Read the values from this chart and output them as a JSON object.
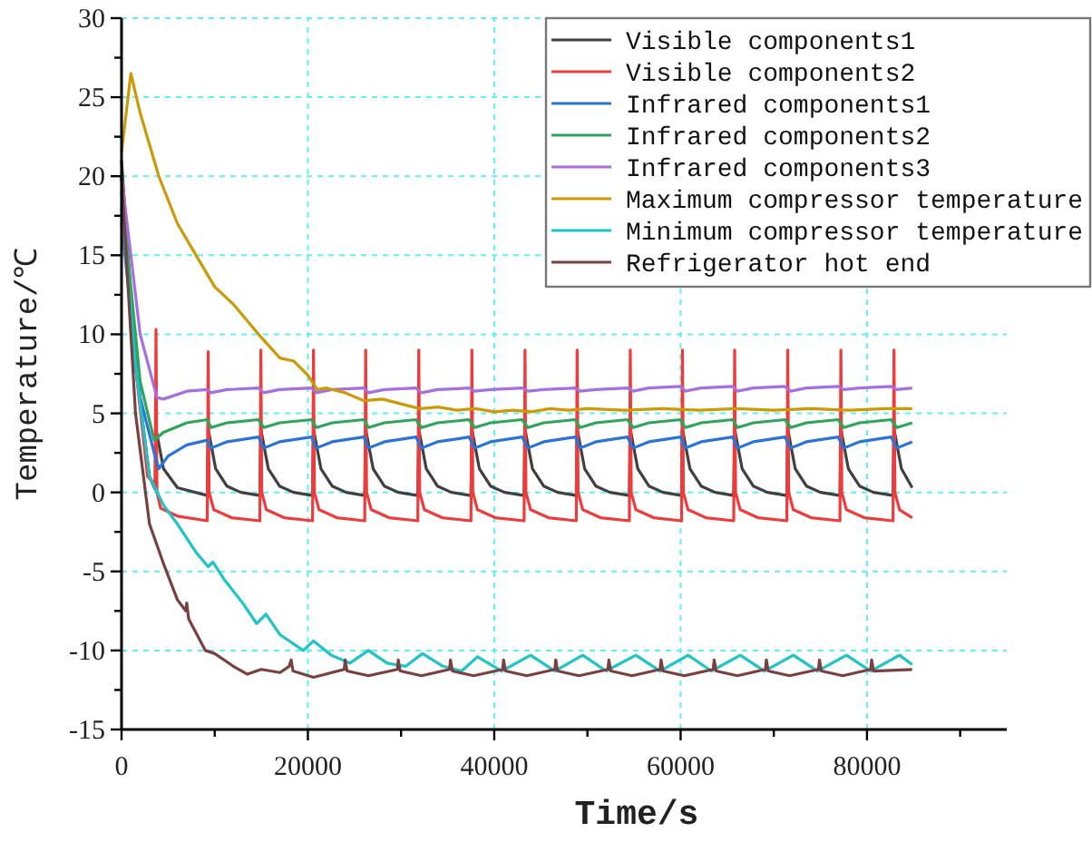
{
  "chart_data": {
    "type": "line",
    "xlabel": "Time/s",
    "ylabel": "Temperature/℃",
    "xlim": [
      0,
      95000
    ],
    "ylim": [
      -15,
      30
    ],
    "xticks": [
      0,
      {
        "value": 10000,
        "label": null
      },
      20000,
      {
        "value": 30000,
        "label": null
      },
      40000,
      {
        "value": 50000,
        "label": null
      },
      60000,
      {
        "value": 70000,
        "label": null
      },
      80000,
      {
        "value": 90000,
        "label": null
      }
    ],
    "yticks": [
      -15,
      {
        "value": -12.5,
        "label": null
      },
      -10,
      {
        "value": -7.5,
        "label": null
      },
      -5,
      {
        "value": -2.5,
        "label": null
      },
      0,
      {
        "value": 2.5,
        "label": null
      },
      5,
      {
        "value": 7.5,
        "label": null
      },
      10,
      {
        "value": 12.5,
        "label": null
      },
      15,
      {
        "value": 17.5,
        "label": null
      },
      20,
      {
        "value": 22.5,
        "label": null
      },
      25,
      {
        "value": 27.5,
        "label": null
      },
      30
    ],
    "grid": true,
    "legend": "top right",
    "marker": "none",
    "line_style": "solid",
    "series": [
      {
        "name": "Visible components1",
        "color": "#404040",
        "x": [
          0,
          1500,
          3000,
          3600,
          3700,
          4500,
          6000,
          9200,
          9300,
          10100,
          11300,
          12800,
          14850,
          14950,
          15750,
          16950,
          18450,
          20500,
          20600,
          21400,
          22600,
          24100,
          26100,
          26200,
          27000,
          28200,
          29700,
          31800,
          31900,
          32700,
          33900,
          35400,
          37500,
          37600,
          38400,
          39600,
          41100,
          43200,
          43300,
          44100,
          45300,
          46800,
          48800,
          48900,
          49700,
          50900,
          52400,
          54500,
          54600,
          55400,
          56600,
          58100,
          60100,
          60200,
          61000,
          62200,
          63700,
          65700,
          65800,
          66600,
          67800,
          69300,
          71400,
          71500,
          72300,
          73500,
          75000,
          77100,
          77200,
          78000,
          79200,
          80700,
          82800,
          82900,
          83700,
          84850
        ],
        "values": [
          21,
          8,
          1,
          0.2,
          4,
          1.5,
          0.3,
          -0.2,
          4,
          1.5,
          0.4,
          0,
          -0.2,
          4,
          1.5,
          0.4,
          0,
          -0.2,
          4,
          1.5,
          0.4,
          0,
          -0.2,
          4,
          1.5,
          0.4,
          0,
          -0.2,
          4,
          1.5,
          0.4,
          0,
          -0.2,
          4,
          1.5,
          0.4,
          0,
          -0.2,
          4,
          1.5,
          0.4,
          0,
          -0.2,
          4,
          1.5,
          0.4,
          0,
          -0.2,
          4,
          1.5,
          0.4,
          0,
          -0.2,
          4,
          1.5,
          0.4,
          0,
          -0.2,
          4,
          1.5,
          0.4,
          0,
          -0.2,
          4,
          1.5,
          0.4,
          0,
          -0.2,
          4,
          1.5,
          0.4,
          0,
          -0.2,
          4,
          1.5,
          0.3
        ]
      },
      {
        "name": "Visible components2",
        "color": "#ee3b3b",
        "x": [
          0,
          1500,
          2800,
          3600,
          3700,
          3800,
          4200,
          6000,
          9200,
          9300,
          9400,
          9900,
          11800,
          14850,
          14950,
          15050,
          15550,
          17450,
          20500,
          20600,
          20700,
          21200,
          23100,
          26100,
          26200,
          26300,
          26800,
          28700,
          31800,
          31900,
          32000,
          32500,
          34400,
          37500,
          37600,
          37700,
          38200,
          40100,
          43200,
          43300,
          43400,
          43900,
          45800,
          48800,
          48900,
          49000,
          49500,
          51400,
          54500,
          54600,
          54700,
          55200,
          57100,
          60100,
          60200,
          60300,
          60800,
          62700,
          65700,
          65800,
          65900,
          66400,
          68300,
          71400,
          71500,
          71600,
          72100,
          74000,
          77100,
          77200,
          77300,
          77800,
          79700,
          82800,
          82900,
          83000,
          83500,
          84850
        ],
        "values": [
          20,
          8,
          1,
          0.5,
          10.3,
          0,
          -1,
          -1.5,
          -1.8,
          8.9,
          0,
          -1.1,
          -1.6,
          -1.8,
          9,
          0,
          -1.1,
          -1.6,
          -1.8,
          9,
          0,
          -1.1,
          -1.6,
          -1.8,
          9,
          0,
          -1.1,
          -1.6,
          -1.8,
          9,
          0,
          -1.1,
          -1.6,
          -1.8,
          9,
          0,
          -1.1,
          -1.6,
          -1.8,
          9,
          0,
          -1.1,
          -1.6,
          -1.8,
          9,
          0,
          -1.1,
          -1.6,
          -1.8,
          9,
          0,
          -1.1,
          -1.6,
          -1.8,
          9,
          0,
          -1.1,
          -1.6,
          -1.8,
          9,
          0,
          -1.1,
          -1.6,
          -1.8,
          9,
          0,
          -1.1,
          -1.6,
          -1.8,
          9,
          0,
          -1.1,
          -1.6,
          -1.8,
          9,
          0,
          -1.1,
          -1.6
        ]
      },
      {
        "name": "Infrared components1",
        "color": "#2a74d8",
        "x": [
          0,
          2000,
          3500,
          4000,
          5000,
          7000,
          9200,
          9600,
          11300,
          14700,
          15250,
          16950,
          20400,
          20900,
          22600,
          26000,
          26500,
          28200,
          31600,
          32200,
          33900,
          37300,
          37900,
          39600,
          43000,
          43600,
          45300,
          48700,
          49200,
          50900,
          54300,
          54900,
          56600,
          60000,
          60500,
          62200,
          65600,
          66100,
          67800,
          71200,
          71800,
          73500,
          76900,
          77500,
          79200,
          82600,
          83200,
          84850
        ],
        "values": [
          17,
          6,
          2.5,
          1.5,
          2.3,
          3,
          3.3,
          2.8,
          3.2,
          3.5,
          2.8,
          3.2,
          3.5,
          2.8,
          3.2,
          3.5,
          2.8,
          3.2,
          3.5,
          2.8,
          3.2,
          3.5,
          2.8,
          3.2,
          3.5,
          2.8,
          3.2,
          3.5,
          2.8,
          3.2,
          3.5,
          2.8,
          3.2,
          3.5,
          2.8,
          3.2,
          3.5,
          2.8,
          3.2,
          3.5,
          2.8,
          3.2,
          3.5,
          2.8,
          3.2,
          3.5,
          2.8,
          3.2
        ]
      },
      {
        "name": "Infrared components2",
        "color": "#2fa55a",
        "x": [
          0,
          2000,
          3500,
          4500,
          7000,
          9200,
          9600,
          11300,
          14700,
          15250,
          16950,
          20400,
          20900,
          22600,
          26000,
          26500,
          28200,
          31600,
          32200,
          33900,
          37300,
          37900,
          39600,
          43000,
          43600,
          45300,
          48700,
          49200,
          50900,
          54300,
          54900,
          56600,
          60000,
          60500,
          62200,
          65600,
          66100,
          67800,
          71200,
          71800,
          73500,
          76900,
          77500,
          79200,
          82600,
          83200,
          84850
        ],
        "values": [
          19,
          7,
          3.3,
          3.8,
          4.4,
          4.6,
          4.1,
          4.4,
          4.6,
          4.1,
          4.4,
          4.6,
          4.1,
          4.4,
          4.6,
          4.1,
          4.4,
          4.6,
          4.1,
          4.4,
          4.6,
          4.1,
          4.4,
          4.6,
          4.1,
          4.4,
          4.6,
          4.1,
          4.4,
          4.6,
          4.1,
          4.4,
          4.6,
          4.1,
          4.4,
          4.6,
          4.1,
          4.4,
          4.6,
          4.1,
          4.4,
          4.6,
          4.1,
          4.4,
          4.6,
          4.1,
          4.4
        ]
      },
      {
        "name": "Infrared components3",
        "color": "#a66ee0",
        "x": [
          0,
          2000,
          3800,
          4500,
          7000,
          9200,
          9600,
          11300,
          14700,
          15250,
          16950,
          20400,
          20900,
          22600,
          26000,
          26500,
          28200,
          31600,
          32200,
          33900,
          37300,
          37900,
          39600,
          43000,
          43600,
          45300,
          48700,
          49200,
          50900,
          54300,
          54900,
          56600,
          60000,
          60500,
          62200,
          65600,
          66100,
          67800,
          71200,
          71800,
          73500,
          76900,
          77500,
          79200,
          82600,
          83200,
          84850
        ],
        "values": [
          20,
          10,
          6,
          5.9,
          6.4,
          6.5,
          6.3,
          6.5,
          6.6,
          6.3,
          6.5,
          6.6,
          6.3,
          6.5,
          6.6,
          6.3,
          6.5,
          6.6,
          6.3,
          6.5,
          6.6,
          6.4,
          6.5,
          6.6,
          6.4,
          6.5,
          6.6,
          6.4,
          6.5,
          6.6,
          6.4,
          6.6,
          6.7,
          6.4,
          6.6,
          6.7,
          6.4,
          6.6,
          6.7,
          6.4,
          6.6,
          6.7,
          6.5,
          6.6,
          6.7,
          6.5,
          6.6
        ]
      },
      {
        "name": "Maximum compressor temperature",
        "color": "#cc9a06",
        "x": [
          0,
          1000,
          2000,
          4000,
          6000,
          8000,
          10000,
          12000,
          14000,
          15000,
          17000,
          18500,
          20000,
          21000,
          22000,
          24000,
          26000,
          28000,
          30000,
          32000,
          34000,
          36000,
          38000,
          40000,
          42000,
          44000,
          46000,
          48000,
          50000,
          54000,
          58000,
          62000,
          66000,
          70000,
          74000,
          78000,
          82000,
          84850
        ],
        "values": [
          21.5,
          26.5,
          24,
          20,
          17,
          15,
          13,
          11.9,
          10.5,
          9.8,
          8.5,
          8.3,
          7.4,
          6.5,
          6.6,
          6.3,
          5.8,
          5.9,
          5.6,
          5.3,
          5.4,
          5.2,
          5.3,
          5.1,
          5.2,
          5.1,
          5.3,
          5.2,
          5.3,
          5.2,
          5.3,
          5.2,
          5.3,
          5.2,
          5.3,
          5.2,
          5.3,
          5.3
        ]
      },
      {
        "name": "Minimum compressor temperature",
        "color": "#1ec4c8",
        "x": [
          0,
          1500,
          3000,
          4500,
          6000,
          8000,
          9300,
          9800,
          11000,
          13000,
          14500,
          15500,
          17000,
          19500,
          20600,
          22500,
          24500,
          26500,
          28500,
          30500,
          32300,
          34500,
          36500,
          38200,
          40800,
          43900,
          46500,
          49500,
          52000,
          55200,
          57800,
          60800,
          63300,
          66400,
          69000,
          72100,
          74700,
          77800,
          80400,
          83500,
          84850
        ],
        "values": [
          18,
          8,
          1,
          -0.8,
          -2,
          -3.8,
          -4.7,
          -4.4,
          -5.5,
          -7,
          -8.3,
          -7.7,
          -9,
          -10,
          -9.4,
          -10.3,
          -10.8,
          -10,
          -10.8,
          -11,
          -10.2,
          -11,
          -11.3,
          -10.4,
          -11.3,
          -10.3,
          -11.3,
          -10.3,
          -11.3,
          -10.3,
          -11.3,
          -10.3,
          -11.3,
          -10.3,
          -11.3,
          -10.3,
          -11.3,
          -10.3,
          -11.3,
          -10.3,
          -10.9
        ]
      },
      {
        "name": "Refrigerator hot end",
        "color": "#7a4040",
        "x": [
          0,
          1500,
          3000,
          4500,
          6000,
          6900,
          7000,
          7200,
          9000,
          10000,
          12000,
          13500,
          15000,
          17000,
          18000,
          18200,
          18400,
          20600,
          23900,
          24000,
          24200,
          26500,
          29600,
          29700,
          29900,
          32200,
          35200,
          35300,
          35500,
          37800,
          40900,
          41000,
          41200,
          43500,
          46500,
          46600,
          46800,
          49100,
          52200,
          52300,
          52500,
          54800,
          57800,
          57900,
          58100,
          60400,
          63500,
          63600,
          63800,
          66100,
          69100,
          69200,
          69400,
          71700,
          74800,
          74900,
          75100,
          77400,
          80400,
          80500,
          80700,
          84850
        ],
        "values": [
          20,
          5,
          -2,
          -4.5,
          -6.8,
          -7.5,
          -7,
          -8,
          -10,
          -10.2,
          -11,
          -11.5,
          -11.2,
          -11.4,
          -11,
          -10.6,
          -11.3,
          -11.7,
          -11.2,
          -10.6,
          -11.3,
          -11.6,
          -11.2,
          -10.6,
          -11.3,
          -11.6,
          -11.2,
          -10.6,
          -11.3,
          -11.6,
          -11.2,
          -10.6,
          -11.3,
          -11.6,
          -11.2,
          -10.6,
          -11.3,
          -11.6,
          -11.2,
          -10.6,
          -11.3,
          -11.6,
          -11.2,
          -10.6,
          -11.3,
          -11.6,
          -11.2,
          -10.6,
          -11.3,
          -11.6,
          -11.2,
          -10.6,
          -11.3,
          -11.6,
          -11.2,
          -10.6,
          -11.3,
          -11.6,
          -11.2,
          -10.6,
          -11.3,
          -11.2
        ]
      }
    ]
  }
}
